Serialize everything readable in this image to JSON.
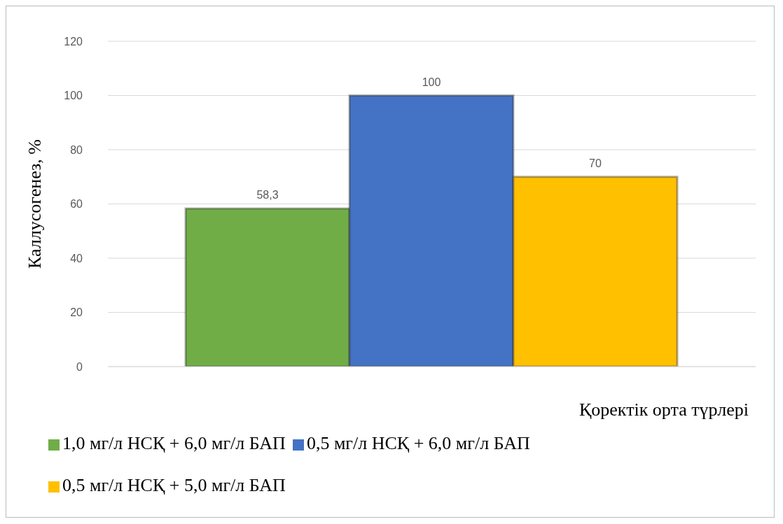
{
  "chart_data": {
    "type": "bar",
    "xlabel": "Қоректік орта түрлері",
    "ylabel": "Каллусогенез, %",
    "categories": [
      null
    ],
    "series": [
      {
        "name": "1,0  мг/л НСҚ + 6,0 мг/л БАП",
        "color": "#70ad47",
        "values": [
          58.3
        ],
        "value_labels": [
          "58,3"
        ]
      },
      {
        "name": "0,5  мг/л НСҚ + 6,0 мг/л БАП",
        "color": "#4472c4",
        "values": [
          100
        ],
        "value_labels": [
          "100"
        ]
      },
      {
        "name": "0,5  мг/л НСҚ + 5,0 мг/л БАП",
        "color": "#ffc000",
        "values": [
          70
        ],
        "value_labels": [
          "70"
        ]
      }
    ],
    "ylim": [
      0,
      120
    ],
    "yticks": [
      0,
      20,
      40,
      60,
      80,
      100,
      120
    ],
    "grid": "y",
    "legend": "bottom"
  }
}
